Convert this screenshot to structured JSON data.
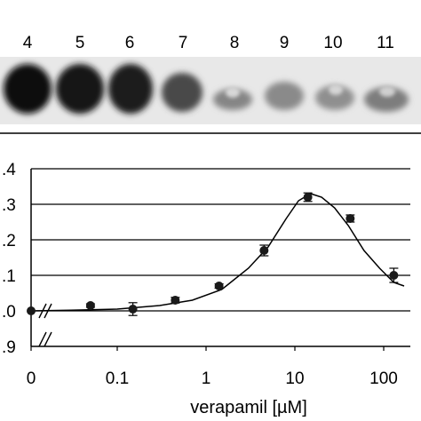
{
  "gel": {
    "lanes": [
      "4",
      "5",
      "6",
      "7",
      "8",
      "9",
      "10",
      "11"
    ]
  },
  "chart_data": {
    "type": "scatter",
    "xlabel": "verapamil [µM]",
    "ylabel": "",
    "x_scale": "log with break at 0",
    "x_ticks": [
      "0",
      "0.1",
      "1",
      "10",
      "100"
    ],
    "y_ticks": [
      ".9",
      ".0",
      ".1",
      ".2",
      ".3",
      ".4"
    ],
    "y_tick_values": [
      0.9,
      1.0,
      1.1,
      1.2,
      1.3,
      1.4
    ],
    "ylim": [
      0.9,
      1.4
    ],
    "grid": "horizontal",
    "series": [
      {
        "points": [
          {
            "x": 0,
            "y": 1.0,
            "err": 0.0
          },
          {
            "x": 0.05,
            "y": 1.015,
            "err": 0.005
          },
          {
            "x": 0.15,
            "y": 1.005,
            "err": 0.018
          },
          {
            "x": 0.45,
            "y": 1.03,
            "err": 0.008
          },
          {
            "x": 1.4,
            "y": 1.07,
            "err": 0.006
          },
          {
            "x": 4.5,
            "y": 1.17,
            "err": 0.015
          },
          {
            "x": 14,
            "y": 1.32,
            "err": 0.012
          },
          {
            "x": 42,
            "y": 1.26,
            "err": 0.01
          },
          {
            "x": 130,
            "y": 1.1,
            "err": 0.02
          }
        ],
        "fit": [
          [
            0.0,
            1.0
          ],
          [
            0.03,
            1.002
          ],
          [
            0.1,
            1.005
          ],
          [
            0.3,
            1.015
          ],
          [
            0.7,
            1.03
          ],
          [
            1.5,
            1.06
          ],
          [
            3,
            1.12
          ],
          [
            5,
            1.18
          ],
          [
            8,
            1.26
          ],
          [
            11,
            1.31
          ],
          [
            15,
            1.33
          ],
          [
            20,
            1.32
          ],
          [
            28,
            1.29
          ],
          [
            40,
            1.24
          ],
          [
            60,
            1.17
          ],
          [
            90,
            1.12
          ],
          [
            130,
            1.08
          ],
          [
            170,
            1.07
          ]
        ]
      }
    ]
  }
}
